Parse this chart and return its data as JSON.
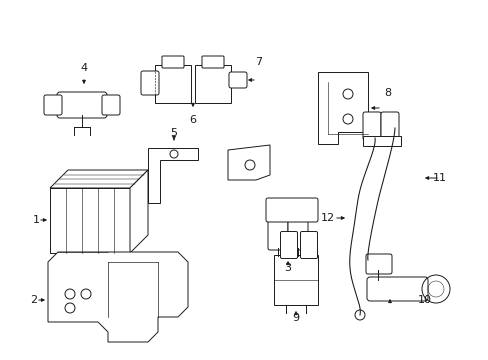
{
  "background_color": "#ffffff",
  "line_color": "#1a1a1a",
  "figsize": [
    4.89,
    3.6
  ],
  "dpi": 100,
  "lw": 0.7
}
